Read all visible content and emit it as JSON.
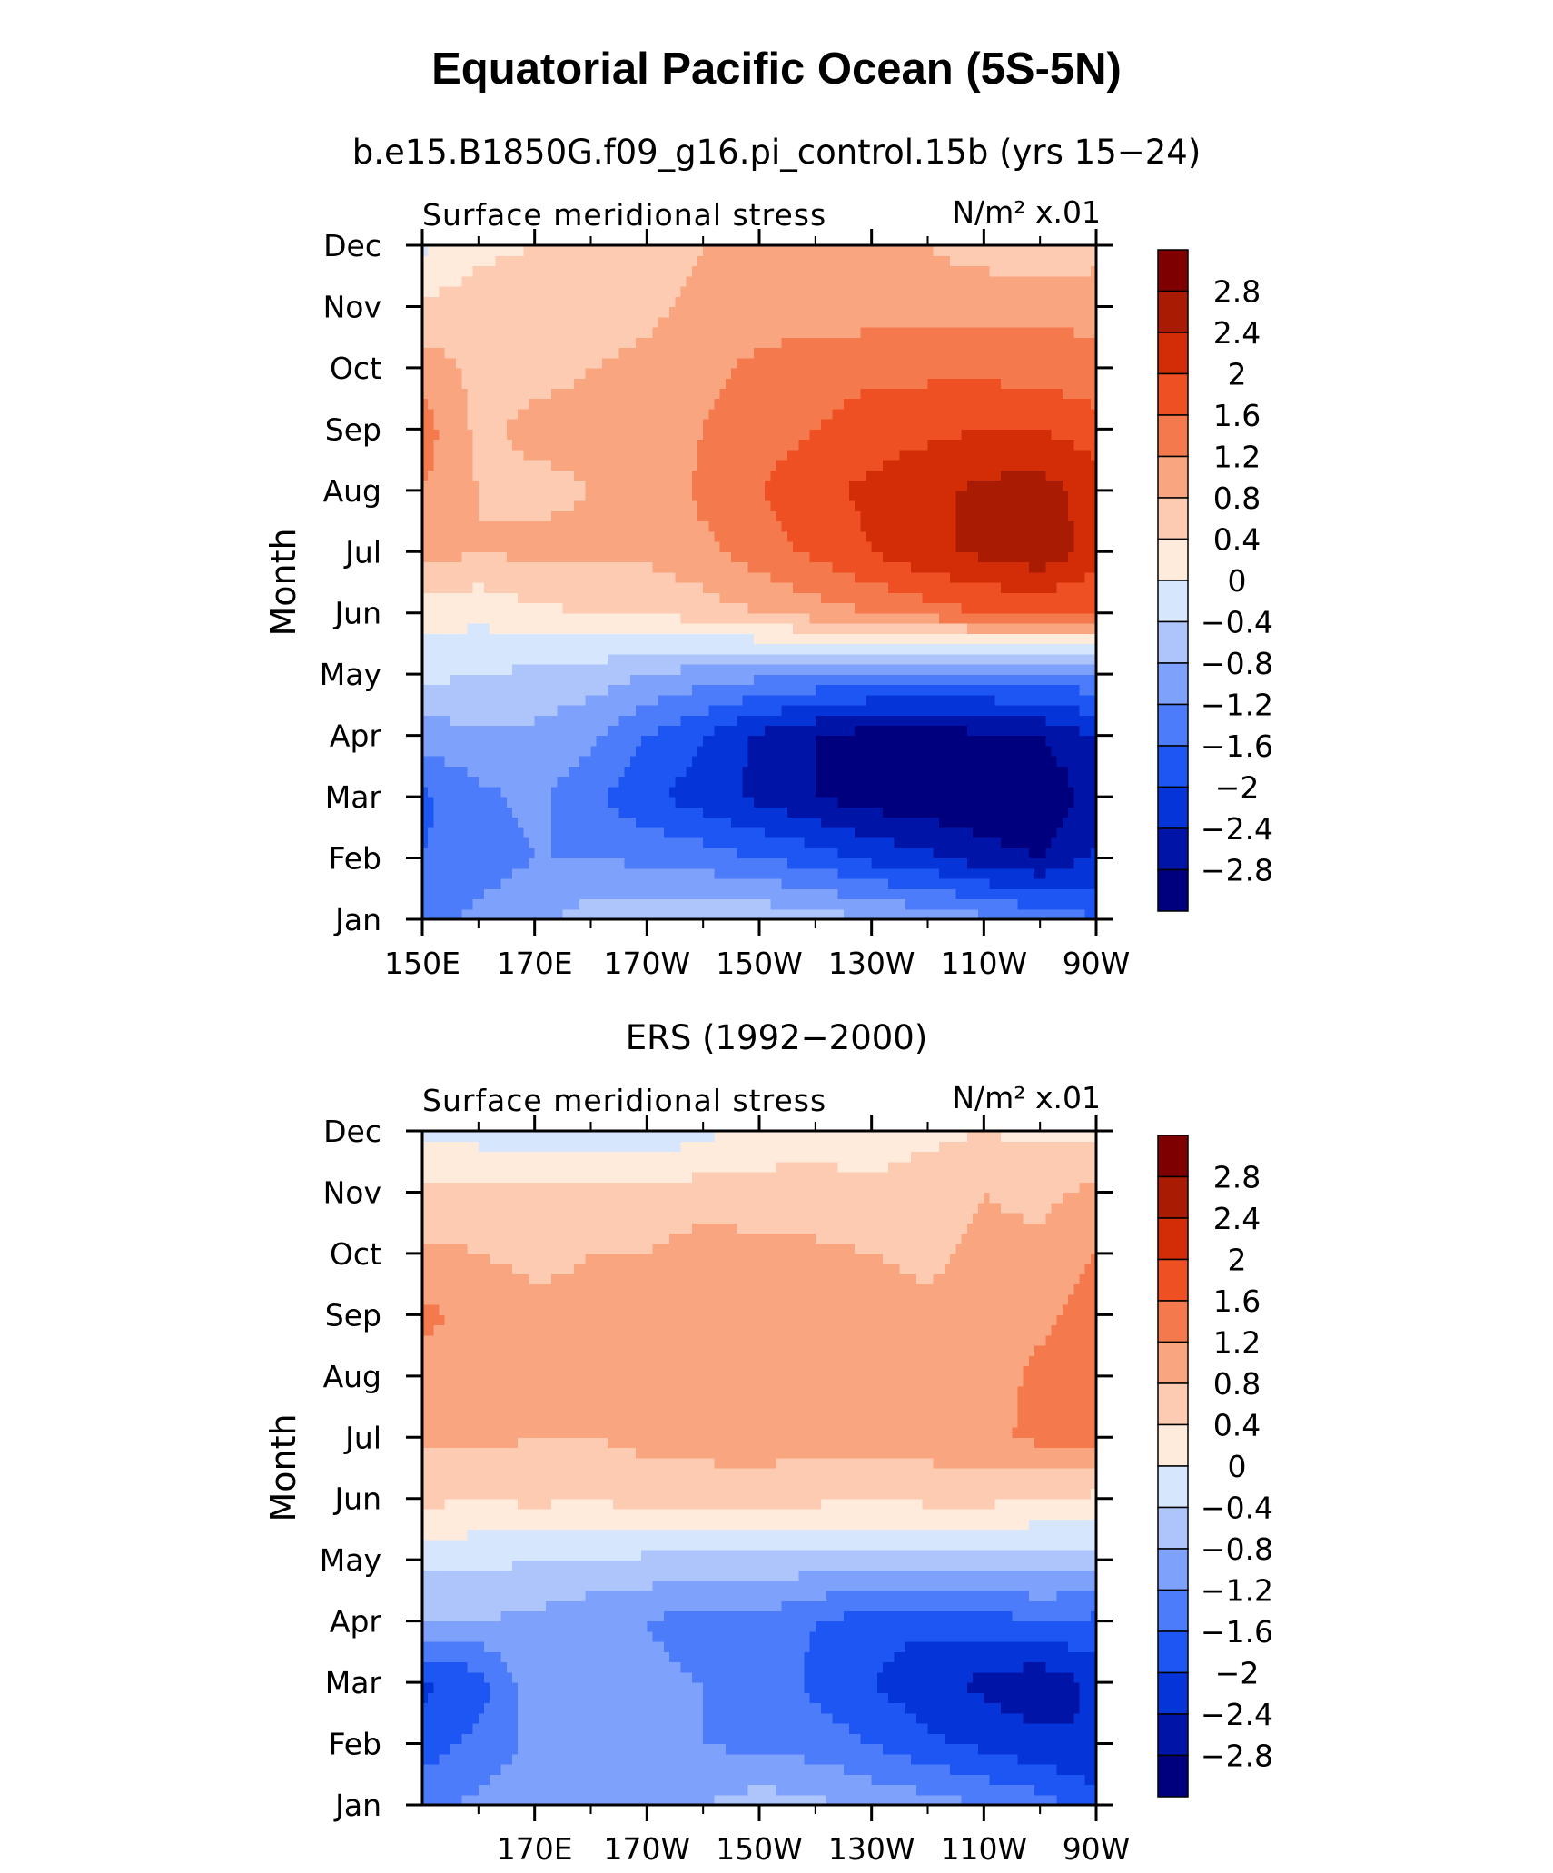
{
  "figure": {
    "title": "Equatorial Pacific Ocean (5S-5N)"
  },
  "levels": [
    -2.8,
    -2.4,
    -2,
    -1.6,
    -1.2,
    -0.8,
    -0.4,
    0,
    0.4,
    0.8,
    1.2,
    1.6,
    2,
    2.4,
    2.8
  ],
  "colorbar_labels": [
    "2.8",
    "2.4",
    "2",
    "1.6",
    "1.2",
    "0.8",
    "0.4",
    "0",
    "−0.4",
    "−0.8",
    "−1.2",
    "−1.6",
    "−2",
    "−2.4",
    "−2.8"
  ],
  "palette": [
    "#00007f",
    "#0014a8",
    "#0535d8",
    "#1e56f4",
    "#4c7cfa",
    "#7ea1fb",
    "#aec5fc",
    "#d6e6fd",
    "#feebdc",
    "#fccbb2",
    "#f9a57f",
    "#f4794d",
    "#ee4f23",
    "#d22d06",
    "#a91b03",
    "#7f0000"
  ],
  "chart_data": [
    {
      "type": "heatmap",
      "title": "b.e15.B1850G.f09_g16.pi_control.15b (yrs 15−24)",
      "left_label": "Surface meridional stress",
      "right_label": "N/m² x.01",
      "ylabel": "Month",
      "xlabel": "",
      "x_tick_labels": [
        "150E",
        "170E",
        "170W",
        "150W",
        "130W",
        "110W",
        "90W"
      ],
      "y_tick_labels": [
        "Jan",
        "Feb",
        "Mar",
        "Apr",
        "May",
        "Jun",
        "Jul",
        "Aug",
        "Sep",
        "Oct",
        "Nov",
        "Dec"
      ],
      "x": [
        150,
        160,
        170,
        180,
        190,
        200,
        210,
        220,
        230,
        240,
        250,
        260,
        270
      ],
      "y": [
        "Jan",
        "Feb",
        "Mar",
        "Apr",
        "May",
        "Jun",
        "Jul",
        "Aug",
        "Sep",
        "Oct",
        "Nov",
        "Dec"
      ],
      "z": [
        [
          -1.4,
          -1.1,
          -0.9,
          -0.6,
          -0.5,
          -0.5,
          -0.5,
          -0.6,
          -0.8,
          -0.9,
          -1.1,
          -1.3,
          -1.6
        ],
        [
          -1.6,
          -1.4,
          -1.2,
          -1.2,
          -1.3,
          -1.4,
          -1.6,
          -1.8,
          -2.1,
          -2.3,
          -2.6,
          -2.8,
          -2.3
        ],
        [
          -1.7,
          -1.3,
          -1.1,
          -1.5,
          -1.9,
          -2.2,
          -2.5,
          -2.8,
          -3.0,
          -3.1,
          -3.2,
          -3.2,
          -2.6
        ],
        [
          -1.0,
          -0.9,
          -0.9,
          -1.1,
          -1.6,
          -2.0,
          -2.5,
          -2.8,
          -3.0,
          -3.0,
          -2.9,
          -2.8,
          -2.4
        ],
        [
          -0.3,
          -0.4,
          -0.5,
          -0.6,
          -0.8,
          -1.0,
          -1.1,
          -1.2,
          -1.3,
          -1.4,
          -1.4,
          -1.3,
          -1.3
        ],
        [
          0.2,
          0.1,
          0.3,
          0.4,
          0.4,
          0.6,
          0.8,
          1.0,
          1.2,
          1.4,
          1.6,
          1.6,
          1.6
        ],
        [
          1.0,
          0.8,
          0.9,
          0.9,
          0.9,
          1.1,
          1.4,
          1.7,
          2.0,
          2.3,
          2.5,
          2.7,
          2.2
        ],
        [
          1.2,
          0.8,
          0.7,
          0.8,
          0.9,
          1.3,
          1.6,
          1.9,
          2.1,
          2.3,
          2.5,
          2.6,
          2.2
        ],
        [
          1.4,
          0.7,
          0.9,
          0.9,
          0.8,
          1.2,
          1.4,
          1.6,
          1.8,
          1.9,
          2.0,
          2.0,
          1.8
        ],
        [
          1.0,
          0.7,
          0.7,
          0.8,
          0.9,
          1.1,
          1.3,
          1.4,
          1.5,
          1.5,
          1.5,
          1.4,
          1.3
        ],
        [
          0.5,
          0.6,
          0.6,
          0.6,
          0.7,
          0.9,
          1.0,
          1.0,
          1.0,
          1.0,
          1.1,
          1.1,
          1.1
        ],
        [
          -0.1,
          0.3,
          0.4,
          0.5,
          0.6,
          0.8,
          0.9,
          0.9,
          0.8,
          0.8,
          0.6,
          0.4,
          0.6
        ]
      ]
    },
    {
      "type": "heatmap",
      "title": "ERS (1992−2000)",
      "left_label": "Surface meridional stress",
      "right_label": "N/m² x.01",
      "ylabel": "Month",
      "xlabel": "",
      "x_tick_labels": [
        "170E",
        "170W",
        "150W",
        "130W",
        "110W",
        "90W"
      ],
      "y_tick_labels": [
        "Jan",
        "Feb",
        "Mar",
        "Apr",
        "May",
        "Jun",
        "Jul",
        "Aug",
        "Sep",
        "Oct",
        "Nov",
        "Dec"
      ],
      "x": [
        150,
        160,
        170,
        180,
        190,
        200,
        210,
        220,
        230,
        240,
        250,
        260,
        270
      ],
      "y": [
        "Jan",
        "Feb",
        "Mar",
        "Apr",
        "May",
        "Jun",
        "Jul",
        "Aug",
        "Sep",
        "Oct",
        "Nov",
        "Dec"
      ],
      "z": [
        [
          -1.3,
          -1.1,
          -0.9,
          -1.0,
          -0.8,
          -0.8,
          -0.6,
          -0.7,
          -0.9,
          -1.0,
          -1.2,
          -1.4,
          -1.8
        ],
        [
          -1.8,
          -1.5,
          -1.1,
          -0.9,
          -1.1,
          -1.2,
          -1.3,
          -1.4,
          -1.6,
          -1.9,
          -2.1,
          -2.3,
          -2.4
        ],
        [
          -2.1,
          -1.8,
          -0.9,
          -0.8,
          -1.1,
          -1.2,
          -1.3,
          -1.7,
          -2.0,
          -2.3,
          -2.5,
          -2.7,
          -2.3
        ],
        [
          -0.8,
          -0.8,
          -0.9,
          -1.1,
          -1.2,
          -1.4,
          -1.3,
          -1.6,
          -1.8,
          -1.9,
          -1.8,
          -1.6,
          -1.7
        ],
        [
          -0.3,
          -0.3,
          -0.4,
          -0.4,
          -0.5,
          -0.6,
          -0.5,
          -0.6,
          -0.5,
          -0.6,
          -0.5,
          -0.6,
          -0.6
        ],
        [
          0.5,
          0.4,
          0.5,
          0.4,
          0.6,
          0.5,
          0.6,
          0.5,
          0.4,
          0.5,
          0.5,
          0.4,
          0.3
        ],
        [
          0.9,
          0.9,
          0.8,
          0.8,
          0.9,
          1.0,
          1.0,
          0.9,
          1.0,
          1.0,
          1.1,
          1.3,
          1.4
        ],
        [
          1.0,
          1.0,
          0.9,
          0.9,
          1.0,
          1.1,
          1.0,
          1.0,
          1.1,
          1.0,
          1.0,
          1.3,
          1.4
        ],
        [
          1.3,
          1.1,
          0.9,
          0.9,
          1.0,
          1.2,
          1.0,
          1.1,
          1.0,
          0.9,
          1.0,
          1.1,
          1.4
        ],
        [
          0.9,
          0.8,
          0.7,
          0.8,
          0.8,
          1.0,
          0.9,
          0.9,
          0.8,
          0.7,
          0.9,
          0.9,
          1.2
        ],
        [
          0.5,
          0.6,
          0.6,
          0.5,
          0.5,
          0.6,
          0.6,
          0.5,
          0.5,
          0.6,
          0.8,
          0.7,
          0.9
        ],
        [
          -0.1,
          -0.2,
          -0.3,
          -0.2,
          -0.3,
          -0.1,
          0.1,
          0.3,
          0.2,
          0.3,
          0.4,
          0.3,
          0.3
        ]
      ]
    }
  ]
}
